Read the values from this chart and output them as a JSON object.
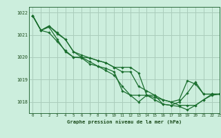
{
  "title": "Graphe pression niveau de la mer (hPa)",
  "bg_color": "#cceedd",
  "grid_color": "#aaccbb",
  "line_color": "#1a6e2e",
  "xlim": [
    -0.5,
    23
  ],
  "ylim": [
    1017.5,
    1022.25
  ],
  "yticks": [
    1018,
    1019,
    1020,
    1021,
    1022
  ],
  "xticks": [
    0,
    1,
    2,
    3,
    4,
    5,
    6,
    7,
    8,
    9,
    10,
    11,
    12,
    13,
    14,
    15,
    16,
    17,
    18,
    19,
    20,
    21,
    22,
    23
  ],
  "series": [
    [
      1021.85,
      1021.2,
      1021.35,
      1020.8,
      1020.25,
      1020.0,
      1020.0,
      1019.8,
      1019.6,
      1019.4,
      1019.2,
      1018.7,
      1018.3,
      1018.3,
      1018.3,
      1018.3,
      1017.9,
      1017.85,
      1017.8,
      1017.65,
      1017.85,
      1018.1,
      1018.3,
      1018.35
    ],
    [
      1021.85,
      1021.2,
      1021.1,
      1020.7,
      1020.3,
      1020.0,
      1019.97,
      1019.7,
      1019.6,
      1019.5,
      1019.35,
      1018.5,
      1018.3,
      1018.0,
      1018.3,
      1018.1,
      1017.9,
      1017.85,
      1018.0,
      1018.4,
      1018.9,
      1018.35,
      1018.35,
      1018.35
    ],
    [
      1021.85,
      1021.2,
      1021.4,
      1021.1,
      1020.8,
      1020.25,
      1020.1,
      1019.97,
      1019.85,
      1019.75,
      1019.55,
      1019.55,
      1019.55,
      1019.3,
      1018.3,
      1018.2,
      1018.1,
      1018.0,
      1018.1,
      1018.95,
      1018.8,
      1018.35,
      1018.35,
      1018.35
    ],
    [
      1021.85,
      1021.2,
      1021.4,
      1021.05,
      1020.8,
      1020.25,
      1020.0,
      1019.97,
      1019.85,
      1019.75,
      1019.55,
      1019.35,
      1019.35,
      1018.7,
      1018.5,
      1018.3,
      1018.1,
      1018.0,
      1017.85,
      1017.85,
      1017.85,
      1018.1,
      1018.35,
      1018.35
    ]
  ]
}
